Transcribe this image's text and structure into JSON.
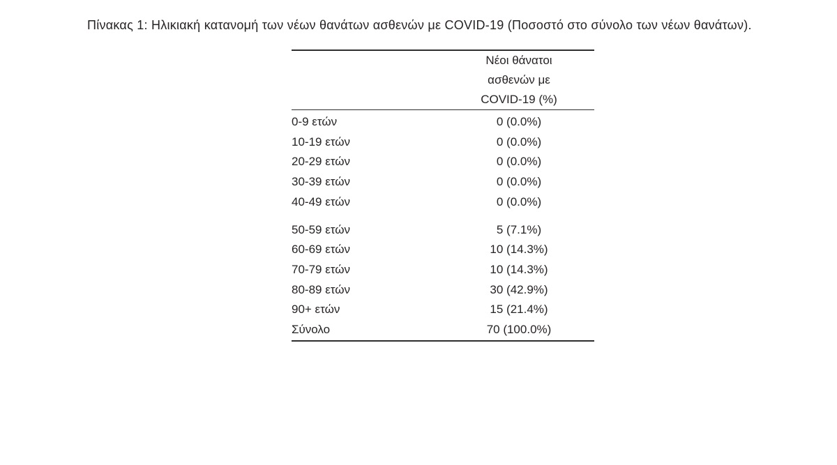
{
  "document": {
    "caption": "Πίνακας 1: Ηλικιακή κατανομή των νέων θανάτων ασθενών με COVID-19 (Ποσοστό στο σύνολο των νέων θανάτων)."
  },
  "table": {
    "value_column_header": "Νέοι θάνατοι\nασθενών με\nCOVID-19 (%)",
    "groups": [
      {
        "rows": [
          {
            "label": "0-9 ετών",
            "value": "0 (0.0%)"
          },
          {
            "label": "10-19 ετών",
            "value": "0 (0.0%)"
          },
          {
            "label": "20-29 ετών",
            "value": "0 (0.0%)"
          },
          {
            "label": "30-39 ετών",
            "value": "0 (0.0%)"
          },
          {
            "label": "40-49 ετών",
            "value": "0 (0.0%)"
          }
        ]
      },
      {
        "rows": [
          {
            "label": "50-59 ετών",
            "value": "5 (7.1%)"
          },
          {
            "label": "60-69 ετών",
            "value": "10 (14.3%)"
          },
          {
            "label": "70-79 ετών",
            "value": "10 (14.3%)"
          },
          {
            "label": "80-89 ετών",
            "value": "30 (42.9%)"
          },
          {
            "label": "90+ ετών",
            "value": "15 (21.4%)"
          }
        ]
      }
    ],
    "total": {
      "label": "Σύνολο",
      "value": "70 (100.0%)"
    }
  },
  "colors": {
    "text": "#272324",
    "rule": "#2e2c2c",
    "background": "#ffffff"
  }
}
